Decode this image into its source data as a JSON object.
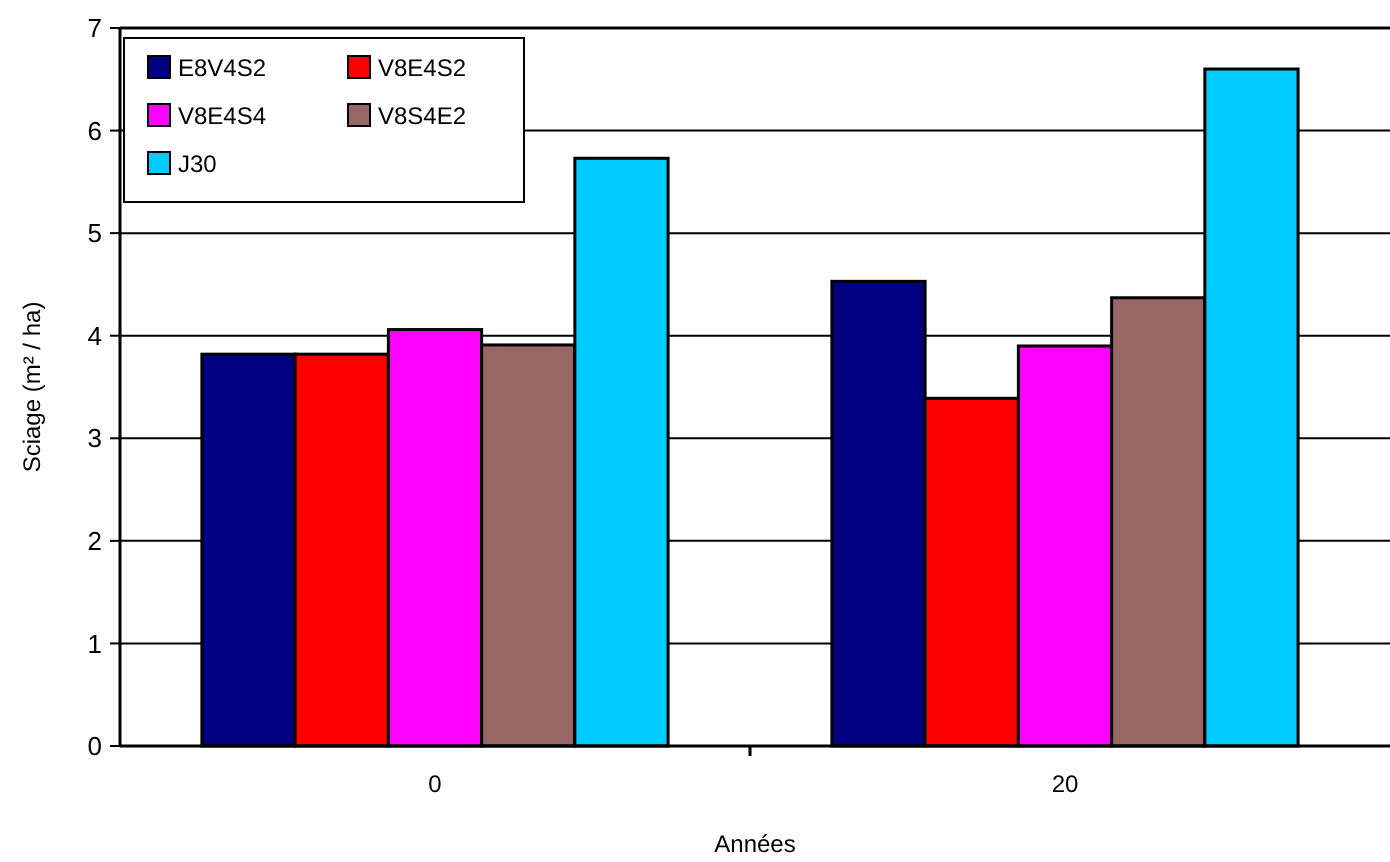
{
  "chart_data": {
    "type": "bar",
    "xlabel": "Années",
    "ylabel": "Sciage (m² / ha)",
    "categories": [
      "0",
      "20"
    ],
    "series": [
      {
        "name": "E8V4S2",
        "color": "#000080",
        "values": [
          3.82,
          4.53
        ]
      },
      {
        "name": "V8E4S2",
        "color": "#ff0000",
        "values": [
          3.82,
          3.39
        ]
      },
      {
        "name": "V8E4S4",
        "color": "#ff00ff",
        "values": [
          4.06,
          3.9
        ]
      },
      {
        "name": "V8S4E2",
        "color": "#996666",
        "values": [
          3.91,
          4.37
        ]
      },
      {
        "name": "J30",
        "color": "#00ccff",
        "values": [
          5.73,
          6.6
        ]
      }
    ],
    "ylim": [
      0,
      7
    ],
    "yticks": [
      0,
      1,
      2,
      3,
      4,
      5,
      6,
      7
    ],
    "grid": "y",
    "legend": "top left"
  }
}
